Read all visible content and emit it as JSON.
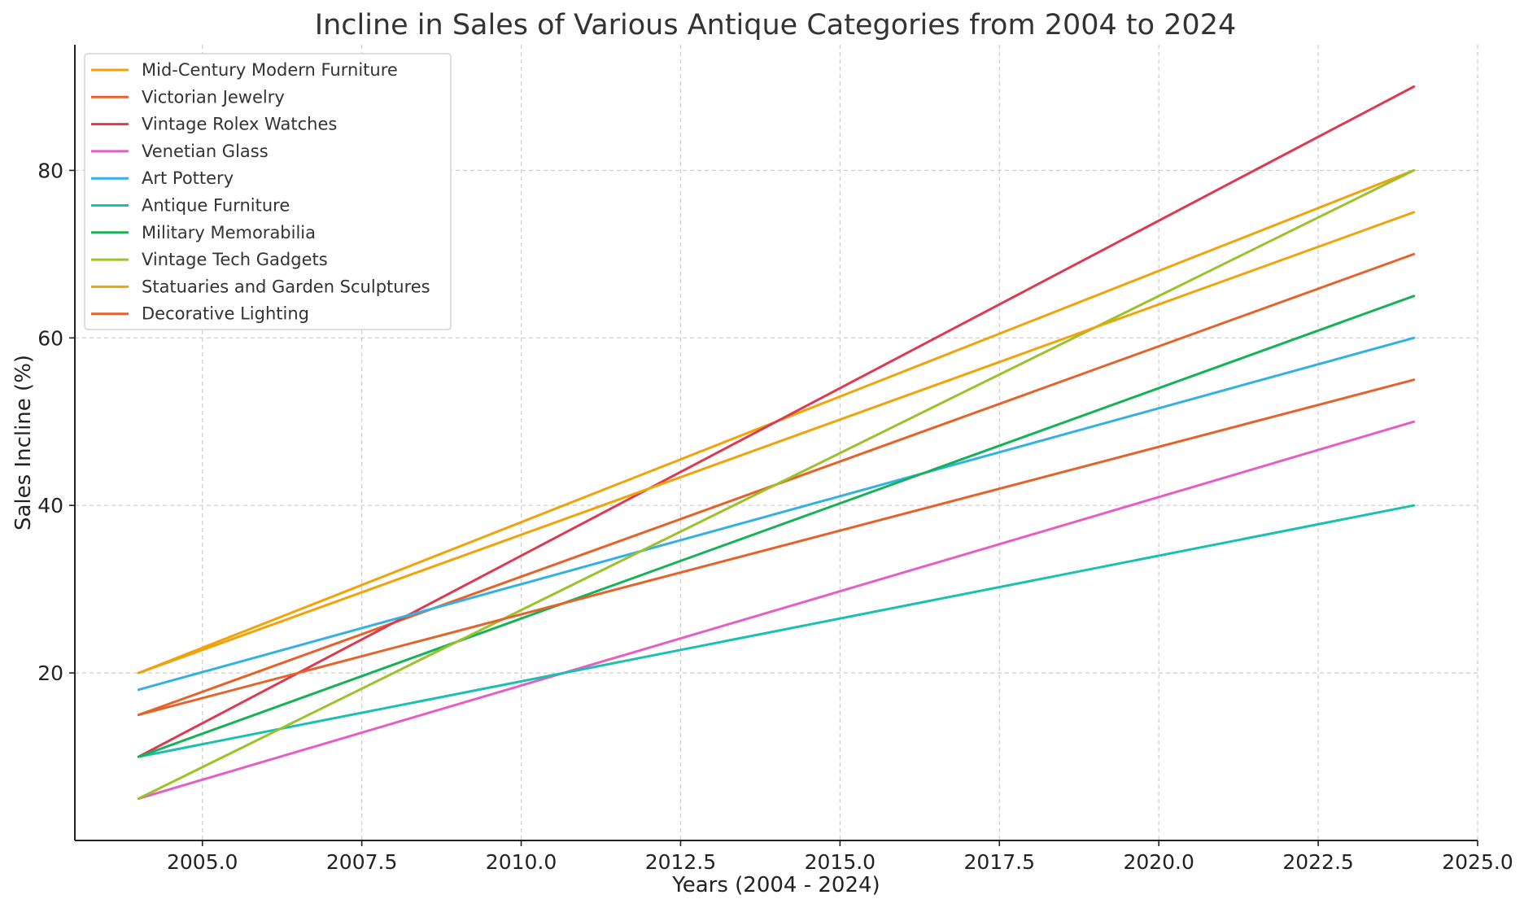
{
  "chart_data": {
    "type": "line",
    "title": "Incline in Sales of Various Antique Categories from 2004 to 2024",
    "xlabel": "Years (2004 - 2024)",
    "ylabel": "Sales Incline (%)",
    "xlim": [
      2003.0,
      2025.0
    ],
    "ylim": [
      0,
      95
    ],
    "xticks": [
      2005.0,
      2007.5,
      2010.0,
      2012.5,
      2015.0,
      2017.5,
      2020.0,
      2022.5,
      2025.0
    ],
    "xtick_labels": [
      "2005.0",
      "2007.5",
      "2010.0",
      "2012.5",
      "2015.0",
      "2017.5",
      "2020.0",
      "2022.5",
      "2025.0"
    ],
    "yticks": [
      20,
      40,
      60,
      80
    ],
    "ytick_labels": [
      "20",
      "40",
      "60",
      "80"
    ],
    "grid": true,
    "legend_position": "top-left",
    "series": [
      {
        "name": "Mid-Century Modern Furniture",
        "color": "#F0A30A",
        "x": [
          2004,
          2024
        ],
        "y": [
          20,
          80
        ]
      },
      {
        "name": "Victorian Jewelry",
        "color": "#E4632A",
        "x": [
          2004,
          2024
        ],
        "y": [
          15,
          70
        ]
      },
      {
        "name": "Vintage Rolex Watches",
        "color": "#DC3A50",
        "x": [
          2004,
          2024
        ],
        "y": [
          10,
          90
        ]
      },
      {
        "name": "Venetian Glass",
        "color": "#E55FC3",
        "x": [
          2004,
          2024
        ],
        "y": [
          5,
          50
        ]
      },
      {
        "name": "Art Pottery",
        "color": "#33B1E3",
        "x": [
          2004,
          2024
        ],
        "y": [
          18,
          60
        ]
      },
      {
        "name": "Antique Furniture",
        "color": "#1CC0B2",
        "x": [
          2004,
          2024
        ],
        "y": [
          10,
          40
        ]
      },
      {
        "name": "Military Memorabilia",
        "color": "#17B157",
        "x": [
          2004,
          2024
        ],
        "y": [
          10,
          65
        ]
      },
      {
        "name": "Vintage Tech Gadgets",
        "color": "#9BC12B",
        "x": [
          2004,
          2024
        ],
        "y": [
          5,
          80
        ]
      },
      {
        "name": "Statuaries and Garden Sculptures",
        "color": "#F0A30A",
        "x": [
          2004,
          2024
        ],
        "y": [
          20,
          75
        ]
      },
      {
        "name": "Decorative Lighting",
        "color": "#E4632A",
        "x": [
          2004,
          2024
        ],
        "y": [
          15,
          55
        ]
      }
    ]
  }
}
